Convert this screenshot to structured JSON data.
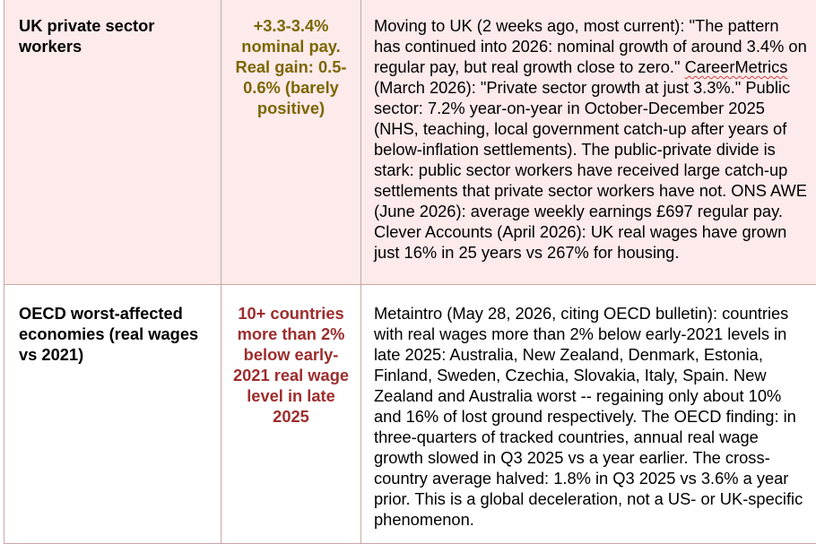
{
  "rows": [
    {
      "label": "UK private sector workers",
      "value": "+3.3-3.4% nominal pay. Real gain: 0.5-0.6% (barely positive)",
      "note_pre": "Moving to UK (2 weeks ago, most current): \"The pattern has continued into 2026: nominal growth of around 3.4% on regular pay, but real growth close to zero.\" ",
      "note_spell": "CareerMetrics",
      "note_post": " (March 2026): \"Private sector growth at just 3.3%.\" Public sector: 7.2% year-on-year in October-December 2025 (NHS, teaching, local government catch-up after years of below-inflation settlements). The public-private divide is stark: public sector workers have received large catch-up settlements that private sector workers have not. ONS AWE (June 2026): average weekly earnings £697 regular pay. Clever Accounts (April 2026): UK real wages have grown just 16% in 25 years vs 267% for housing."
    },
    {
      "label": "OECD worst-affected economies (real wages vs 2021)",
      "value": "10+ countries more than 2% below early-2021 real wage level in late 2025",
      "note": "Metaintro (May 28, 2026, citing OECD bulletin): countries with real wages more than 2% below early-2021 levels in late 2025: Australia, New Zealand, Denmark, Estonia, Finland, Sweden, Czechia, Slovakia, Italy, Spain. New Zealand and Australia worst -- regaining only about 10% and 16% of lost ground respectively. The OECD finding: in three-quarters of tracked countries, annual real wage growth slowed in Q3 2025 vs a year earlier. The cross-country average halved: 1.8% in Q3 2025 vs 3.6% a year prior. This is a global deceleration, not a US- or UK-specific phenomenon."
    }
  ],
  "colors": {
    "row1_value": "#7c6600",
    "row2_value": "#9e2d2d",
    "row1_background": "#fdeaea",
    "border": "#c9a6a6",
    "spellcheck_underline": "#d04040"
  }
}
